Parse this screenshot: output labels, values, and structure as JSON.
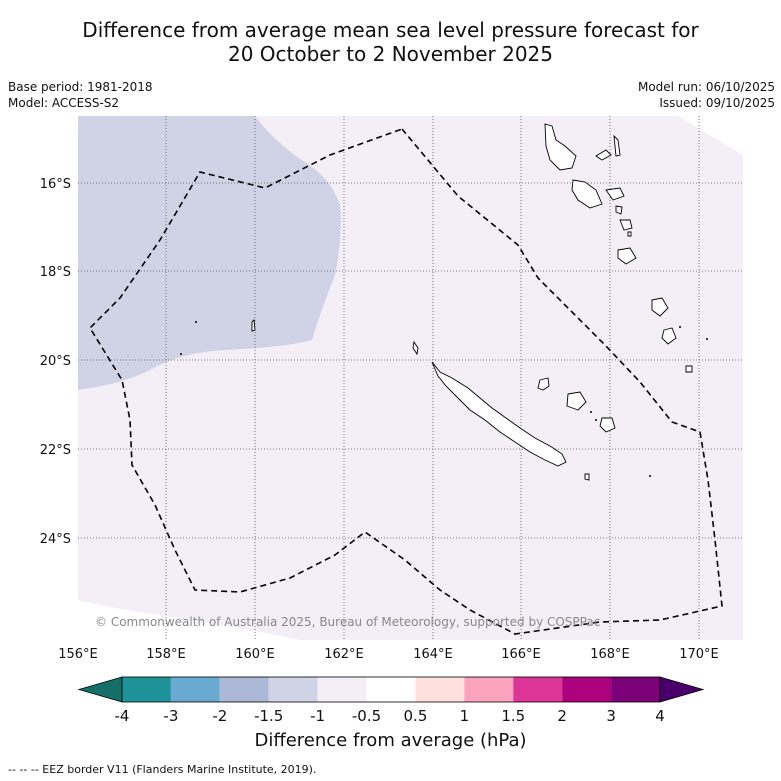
{
  "header": {
    "title_line1": "Difference from average mean sea level pressure forecast for",
    "title_line2": "20 October to 2 November 2025",
    "base_period": "Base period: 1981-2018",
    "model": "Model: ACCESS-S2",
    "model_run": "Model run: 06/10/2025",
    "issued": "Issued: 09/10/2025"
  },
  "map": {
    "lat_labels": [
      "16°S",
      "18°S",
      "20°S",
      "22°S",
      "24°S"
    ],
    "lon_labels": [
      "156°E",
      "158°E",
      "160°E",
      "162°E",
      "164°E",
      "166°E",
      "168°E",
      "170°E"
    ],
    "copyright": "© Commonwealth of Australia 2025, Bureau of Meteorology, supported by COSPPac",
    "colors": {
      "negative_region": "#d0d2e6",
      "slight_region": "#f4eef6",
      "gridline": "#555555",
      "eez": "#000000"
    }
  },
  "colorbar": {
    "title": "Difference from average (hPa)",
    "tick_labels": [
      "-4",
      "-3",
      "-2",
      "-1.5",
      "-1",
      "-0.5",
      "0.5",
      "1",
      "1.5",
      "2",
      "3",
      "4"
    ],
    "colors": [
      "#136f67",
      "#1d9399",
      "#6aaad1",
      "#abb8d8",
      "#d0d2e6",
      "#f4eef6",
      "#ffffff",
      "#fee0de",
      "#fba3bd",
      "#dd3497",
      "#ae017e",
      "#7a0177",
      "#49006a"
    ]
  },
  "footer": {
    "eez_note": "--  --  -- EEZ border V11 (Flanders Marine Institute, 2019)."
  }
}
